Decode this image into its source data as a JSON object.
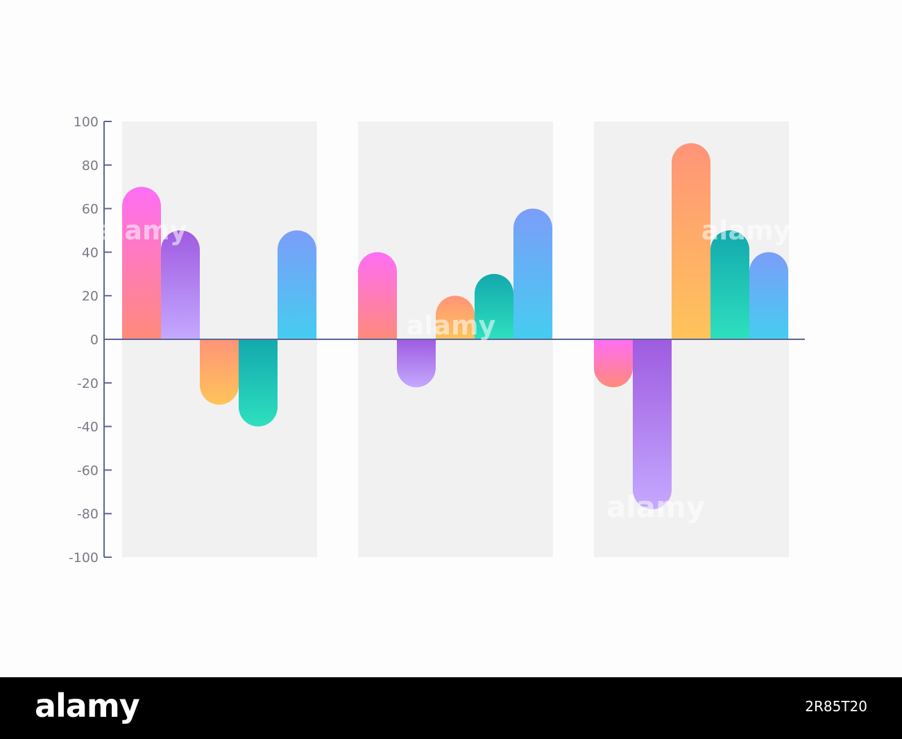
{
  "chart_data": {
    "type": "bar",
    "title": "",
    "xlabel": "",
    "ylabel": "",
    "ylim": [
      -100,
      100
    ],
    "yticks": [
      100,
      80,
      60,
      40,
      20,
      0,
      -20,
      -40,
      -60,
      -80,
      -100
    ],
    "grid": false,
    "legend": "none",
    "groups": [
      {
        "values": [
          70,
          50,
          -30,
          -40,
          50
        ]
      },
      {
        "values": [
          40,
          -22,
          20,
          30,
          60
        ]
      },
      {
        "values": [
          -22,
          -78,
          90,
          50,
          40
        ]
      }
    ],
    "bar_styles": [
      {
        "top": "#ff6ef5",
        "bottom": "#ff8a7a"
      },
      {
        "top": "#9f5be0",
        "bottom": "#c4a9ff"
      },
      {
        "top": "#ff9478",
        "bottom": "#ffc45a"
      },
      {
        "top": "#13a8ad",
        "bottom": "#2ee0bf"
      },
      {
        "top": "#7b9df9",
        "bottom": "#45cdf0"
      }
    ],
    "panel_color": "#f1f1f1",
    "axis_color": "#5c6597"
  },
  "watermark": {
    "text": "alamy",
    "footer_brand": "alamy",
    "image_id": "2R85T20"
  }
}
